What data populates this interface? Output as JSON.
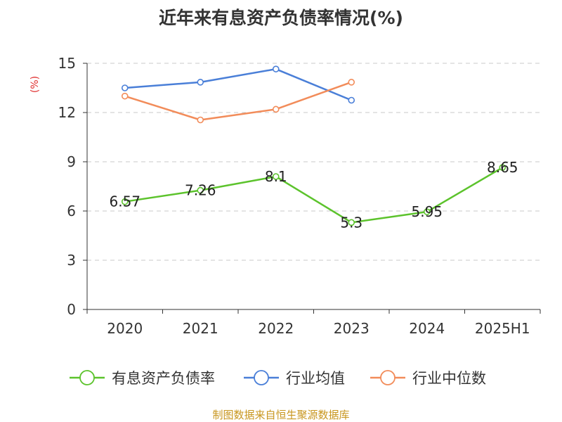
{
  "chart_data": {
    "type": "line",
    "title": "近年来有息资产负债率情况(%)",
    "ylabel": "(%)",
    "xlabel": "",
    "categories": [
      "2020",
      "2021",
      "2022",
      "2023",
      "2024",
      "2025H1"
    ],
    "ylim": [
      0,
      15
    ],
    "yticks": [
      0,
      3,
      6,
      9,
      12,
      15
    ],
    "grid": true,
    "legend_position": "bottom",
    "series": [
      {
        "name": "有息资产负债率",
        "color": "#5cc32c",
        "values": [
          6.57,
          7.26,
          8.1,
          5.3,
          5.95,
          8.65
        ],
        "labels": [
          "6.57",
          "7.26",
          "8.1",
          "5.3",
          "5.95",
          "8.65"
        ]
      },
      {
        "name": "行业均值",
        "color": "#4a7fd8",
        "values": [
          13.5,
          13.85,
          14.65,
          12.75,
          null,
          null
        ]
      },
      {
        "name": "行业中位数",
        "color": "#f28c5a",
        "values": [
          13.0,
          11.55,
          12.2,
          13.85,
          null,
          null
        ]
      }
    ]
  },
  "source_text": "制图数据来自恒生聚源数据库"
}
